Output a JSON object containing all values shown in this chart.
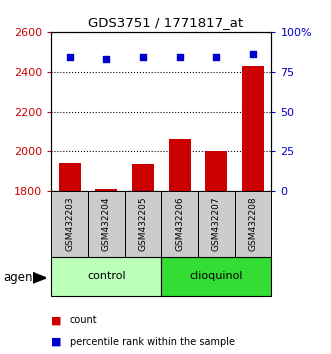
{
  "title": "GDS3751 / 1771817_at",
  "samples": [
    "GSM432203",
    "GSM432204",
    "GSM432205",
    "GSM432206",
    "GSM432207",
    "GSM432208"
  ],
  "bar_values": [
    1940,
    1810,
    1935,
    2060,
    2000,
    2430
  ],
  "scatter_values": [
    84,
    83,
    84,
    84,
    84,
    86
  ],
  "bar_bottom": 1800,
  "ylim_left": [
    1800,
    2600
  ],
  "ylim_right": [
    0,
    100
  ],
  "yticks_left": [
    1800,
    2000,
    2200,
    2400,
    2600
  ],
  "yticks_right": [
    0,
    25,
    50,
    75,
    100
  ],
  "yticklabels_right": [
    "0",
    "25",
    "50",
    "75",
    "100%"
  ],
  "bar_color": "#cc0000",
  "scatter_color": "#0000cc",
  "control_color": "#bbffbb",
  "clioquinol_color": "#33dd33",
  "tick_label_color_left": "#cc0000",
  "tick_label_color_right": "#0000cc",
  "sample_box_color": "#cccccc",
  "legend_bar_label": "count",
  "legend_scatter_label": "percentile rank within the sample",
  "agent_label": "agent",
  "figsize": [
    3.31,
    3.54
  ],
  "dpi": 100
}
